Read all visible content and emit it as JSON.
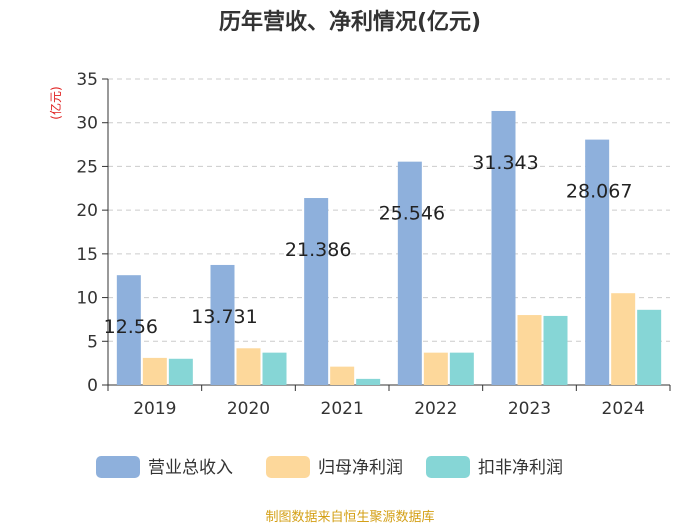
{
  "chart_data": {
    "type": "bar",
    "title": "历年营收、净利情况(亿元)",
    "ylabel": "(亿元)",
    "xlabel": "",
    "ylim": [
      0,
      35
    ],
    "yticks": [
      0,
      5,
      10,
      15,
      20,
      25,
      30,
      35
    ],
    "categories": [
      "2019",
      "2020",
      "2021",
      "2022",
      "2023",
      "2024"
    ],
    "series": [
      {
        "name": "营业总收入",
        "color": "#8eb0dc",
        "values": [
          12.56,
          13.731,
          21.386,
          25.546,
          31.343,
          28.067
        ]
      },
      {
        "name": "归母净利润",
        "color": "#fdd89b",
        "values": [
          3.1,
          4.2,
          2.1,
          3.7,
          8.0,
          10.5
        ]
      },
      {
        "name": "扣非净利润",
        "color": "#86d6d6",
        "values": [
          3.0,
          3.7,
          0.7,
          3.7,
          7.9,
          8.6
        ]
      }
    ],
    "data_labels": [
      "12.56",
      "13.731",
      "21.386",
      "25.546",
      "31.343",
      "28.067"
    ],
    "legend_position": "bottom"
  },
  "source": "制图数据来自恒生聚源数据库"
}
